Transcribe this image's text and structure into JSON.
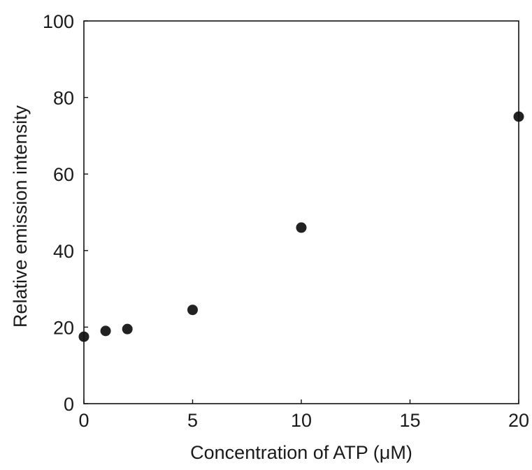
{
  "chart_data": {
    "type": "scatter",
    "title": "",
    "xlabel": "Concentration of ATP (μM)",
    "ylabel": "Relative emission intensity",
    "xlim": [
      0,
      20
    ],
    "ylim": [
      0,
      100
    ],
    "x_ticks": [
      0,
      5,
      10,
      15,
      20
    ],
    "y_ticks": [
      0,
      20,
      40,
      60,
      80,
      100
    ],
    "grid": false,
    "legend": "none",
    "marker_color": "#222222",
    "series": [
      {
        "points": [
          {
            "x": 0,
            "y": 17.5
          },
          {
            "x": 1,
            "y": 19
          },
          {
            "x": 2,
            "y": 19.5
          },
          {
            "x": 5,
            "y": 24.5
          },
          {
            "x": 10,
            "y": 46
          },
          {
            "x": 20,
            "y": 75
          }
        ]
      }
    ]
  }
}
